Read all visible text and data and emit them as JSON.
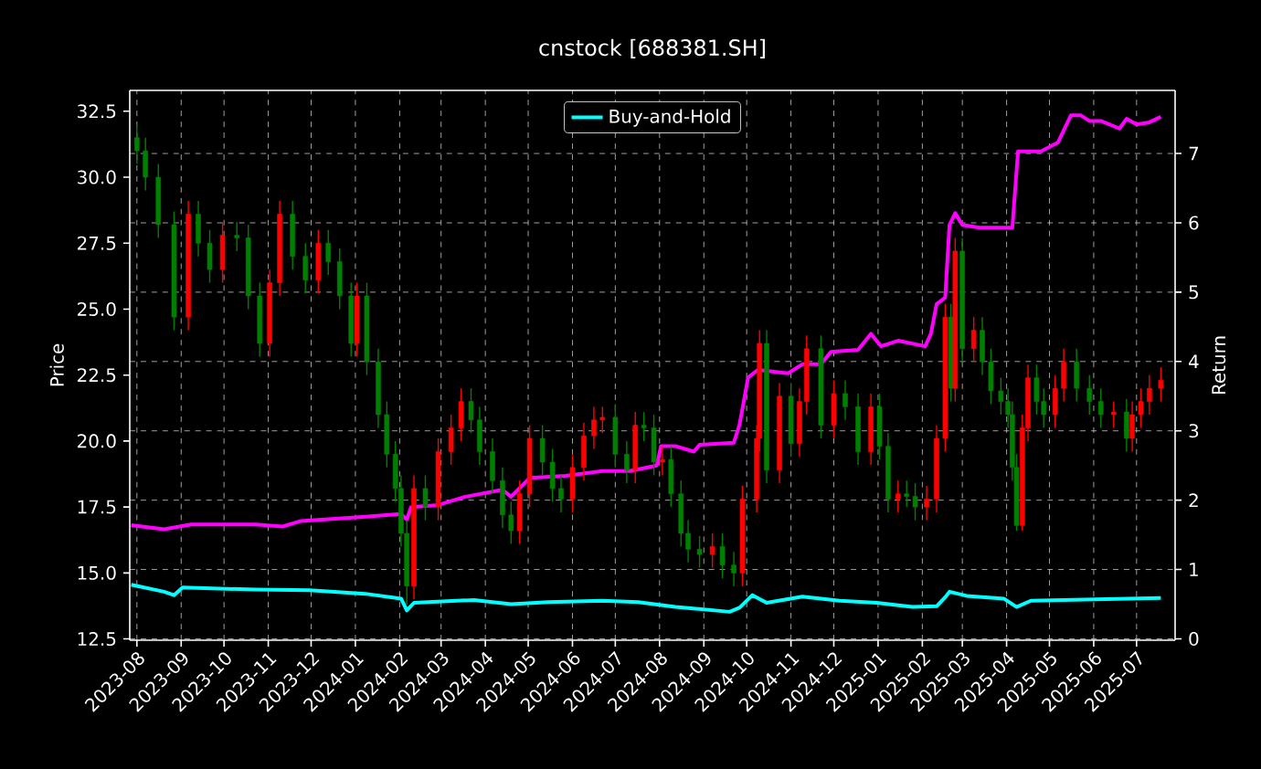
{
  "chart_data": {
    "type": "candlestick",
    "title": "cnstock [688381.SH]",
    "ylabel": "Price",
    "y2label": "Return",
    "xlim": [
      "2023-07-27",
      "2025-07-28"
    ],
    "xticks": [
      "2023-08",
      "2023-09",
      "2023-10",
      "2023-11",
      "2023-12",
      "2024-01",
      "2024-02",
      "2024-03",
      "2024-04",
      "2024-05",
      "2024-06",
      "2024-07",
      "2024-08",
      "2024-09",
      "2024-10",
      "2024-11",
      "2024-12",
      "2025-01",
      "2025-02",
      "2025-03",
      "2025-04",
      "2025-05",
      "2025-06",
      "2025-07"
    ],
    "ylim": [
      12.45,
      33.29
    ],
    "yticks": [
      12.5,
      {
        "value": 15,
        "label": "15.0"
      },
      17.5,
      {
        "value": 20,
        "label": "20.0"
      },
      22.5,
      {
        "value": 25,
        "label": "25.0"
      },
      27.5,
      {
        "value": 30,
        "label": "30.0"
      },
      32.5
    ],
    "y2lim": [
      -0.02,
      7.91
    ],
    "y2ticks": [
      0,
      1,
      2,
      3,
      4,
      5,
      6,
      7
    ],
    "grid": true,
    "legend": "top",
    "marker": "none",
    "line_style": "solid",
    "series": [
      {
        "type": "line",
        "axis": "y2",
        "color": "#ff00ff",
        "x": [
          "2023-07-28",
          "2023-08-20",
          "2023-09-08",
          "2023-10-23",
          "2023-11-11",
          "2023-11-24",
          "2024-01-08",
          "2024-02-02",
          "2024-02-06",
          "2024-02-09",
          "2024-02-28",
          "2024-03-18",
          "2024-04-13",
          "2024-04-19",
          "2024-05-02",
          "2024-05-27",
          "2024-06-22",
          "2024-07-11",
          "2024-07-30",
          "2024-08-02",
          "2024-08-12",
          "2024-08-25",
          "2024-08-29",
          "2024-09-22",
          "2024-09-26",
          "2024-10-02",
          "2024-10-09",
          "2024-10-30",
          "2024-11-09",
          "2024-11-22",
          "2024-11-29",
          "2024-12-18",
          "2024-12-27",
          "2025-01-03",
          "2025-01-15",
          "2025-02-03",
          "2025-02-07",
          "2025-02-11",
          "2025-02-17",
          "2025-02-20",
          "2025-02-24",
          "2025-03-01",
          "2025-03-13",
          "2025-04-05",
          "2025-04-09",
          "2025-04-25",
          "2025-05-07",
          "2025-05-16",
          "2025-05-23",
          "2025-05-29",
          "2025-06-06",
          "2025-06-19",
          "2025-06-24",
          "2025-07-01",
          "2025-07-10",
          "2025-07-18"
        ],
        "values": [
          1.64,
          1.58,
          1.65,
          1.65,
          1.62,
          1.7,
          1.76,
          1.8,
          1.72,
          1.9,
          1.93,
          2.05,
          2.15,
          2.05,
          2.32,
          2.35,
          2.42,
          2.42,
          2.5,
          2.78,
          2.78,
          2.7,
          2.8,
          2.83,
          3.09,
          3.77,
          3.88,
          3.83,
          3.96,
          3.96,
          4.14,
          4.17,
          4.4,
          4.22,
          4.3,
          4.22,
          4.4,
          4.83,
          4.92,
          5.97,
          6.14,
          5.97,
          5.93,
          5.93,
          7.03,
          7.03,
          7.16,
          7.55,
          7.55,
          7.47,
          7.47,
          7.36,
          7.5,
          7.42,
          7.45,
          7.53
        ]
      },
      {
        "type": "line",
        "axis": "y2",
        "name": "Buy-and-Hold",
        "color": "#00ffff",
        "x": [
          "2023-07-28",
          "2023-08-20",
          "2023-08-27",
          "2023-09-02",
          "2023-10-23",
          "2023-11-30",
          "2024-01-08",
          "2024-02-02",
          "2024-02-06",
          "2024-02-11",
          "2024-03-24",
          "2024-04-19",
          "2024-05-15",
          "2024-06-22",
          "2024-07-17",
          "2024-08-12",
          "2024-09-19",
          "2024-09-26",
          "2024-10-05",
          "2024-10-15",
          "2024-11-09",
          "2024-12-05",
          "2024-12-31",
          "2025-01-25",
          "2025-02-11",
          "2025-02-17",
          "2025-02-20",
          "2025-03-04",
          "2025-03-30",
          "2025-04-08",
          "2025-04-18",
          "2025-06-02",
          "2025-07-18"
        ],
        "values": [
          0.78,
          0.68,
          0.63,
          0.74,
          0.71,
          0.7,
          0.65,
          0.58,
          0.41,
          0.52,
          0.56,
          0.5,
          0.53,
          0.55,
          0.53,
          0.46,
          0.39,
          0.45,
          0.63,
          0.52,
          0.61,
          0.55,
          0.52,
          0.46,
          0.47,
          0.6,
          0.68,
          0.62,
          0.58,
          0.46,
          0.55,
          0.57,
          0.59
        ]
      },
      {
        "x": [
          "2023-08-01",
          "2023-08-07",
          "2023-08-16",
          "2023-08-27",
          "2023-09-06",
          "2023-09-13",
          "2023-09-21",
          "2023-09-30",
          "2023-10-10",
          "2023-10-18",
          "2023-10-26",
          "2023-11-02",
          "2023-11-09",
          "2023-11-18",
          "2023-11-27",
          "2023-12-06",
          "2023-12-13",
          "2023-12-21",
          "2023-12-29",
          "2024-01-02",
          "2024-01-09",
          "2024-01-17",
          "2024-01-23",
          "2024-01-29",
          "2024-02-02",
          "2024-02-06",
          "2024-02-11",
          "2024-02-19",
          "2024-02-28",
          "2024-03-08",
          "2024-03-15",
          "2024-03-22",
          "2024-03-28",
          "2024-04-06",
          "2024-04-13",
          "2024-04-19",
          "2024-04-25",
          "2024-05-02",
          "2024-05-11",
          "2024-05-18",
          "2024-05-24",
          "2024-06-01",
          "2024-06-09",
          "2024-06-16",
          "2024-06-22",
          "2024-07-01",
          "2024-07-09",
          "2024-07-15",
          "2024-07-21",
          "2024-07-28",
          "2024-08-03",
          "2024-08-09",
          "2024-08-16",
          "2024-08-21",
          "2024-08-29",
          "2024-09-07",
          "2024-09-14",
          "2024-09-22",
          "2024-09-28",
          "2024-10-08",
          "2024-10-10",
          "2024-10-15",
          "2024-10-24",
          "2024-11-01",
          "2024-11-07",
          "2024-11-12",
          "2024-11-22",
          "2024-12-01",
          "2024-12-09",
          "2024-12-18",
          "2024-12-27",
          "2025-01-02",
          "2025-01-08",
          "2025-01-15",
          "2025-01-21",
          "2025-01-27",
          "2025-02-04",
          "2025-02-11",
          "2025-02-17",
          "2025-02-21",
          "2025-02-24",
          "2025-03-01",
          "2025-03-09",
          "2025-03-15",
          "2025-03-21",
          "2025-03-28",
          "2025-04-02",
          "2025-04-05",
          "2025-04-08",
          "2025-04-12",
          "2025-04-16",
          "2025-04-22",
          "2025-04-27",
          "2025-05-05",
          "2025-05-11",
          "2025-05-20",
          "2025-05-29",
          "2025-06-06",
          "2025-06-15",
          "2025-06-24",
          "2025-06-28",
          "2025-07-04",
          "2025-07-10",
          "2025-07-18"
        ],
        "ohlc": [
          [
            31.5,
            32.0,
            30.5,
            31.0
          ],
          [
            31.0,
            31.5,
            29.5,
            30.0
          ],
          [
            30.0,
            30.5,
            27.7,
            28.2
          ],
          [
            28.2,
            28.7,
            24.2,
            24.7
          ],
          [
            24.7,
            29.1,
            24.2,
            28.6
          ],
          [
            28.6,
            29.1,
            27.0,
            27.5
          ],
          [
            27.5,
            28.0,
            26.0,
            26.5
          ],
          [
            26.5,
            28.3,
            26.0,
            27.8
          ],
          [
            27.8,
            28.3,
            27.2,
            27.7
          ],
          [
            27.7,
            28.2,
            25.0,
            25.5
          ],
          [
            25.5,
            26.0,
            23.2,
            23.7
          ],
          [
            23.7,
            26.5,
            23.2,
            26.0
          ],
          [
            26.0,
            29.1,
            25.5,
            28.6
          ],
          [
            28.6,
            29.1,
            26.5,
            27.0
          ],
          [
            27.0,
            27.5,
            25.6,
            26.1
          ],
          [
            26.1,
            28.0,
            25.6,
            27.5
          ],
          [
            27.5,
            28.0,
            26.3,
            26.8
          ],
          [
            26.8,
            27.3,
            25.0,
            25.5
          ],
          [
            25.5,
            26.0,
            23.2,
            23.7
          ],
          [
            23.7,
            26.0,
            23.2,
            25.5
          ],
          [
            25.5,
            26.0,
            22.5,
            23.0
          ],
          [
            23.0,
            23.5,
            20.5,
            21.0
          ],
          [
            21.0,
            21.5,
            19.0,
            19.5
          ],
          [
            19.5,
            20.0,
            17.7,
            18.2
          ],
          [
            18.2,
            18.7,
            16.0,
            16.5
          ],
          [
            16.5,
            17.0,
            13.8,
            14.5
          ],
          [
            14.5,
            18.7,
            14.0,
            18.2
          ],
          [
            18.2,
            18.7,
            17.0,
            17.5
          ],
          [
            17.5,
            20.1,
            17.0,
            19.6
          ],
          [
            19.6,
            21.0,
            19.1,
            20.5
          ],
          [
            20.5,
            22.0,
            20.0,
            21.5
          ],
          [
            21.5,
            22.0,
            20.3,
            20.8
          ],
          [
            20.8,
            21.3,
            19.1,
            19.6
          ],
          [
            19.6,
            20.1,
            18.0,
            18.5
          ],
          [
            18.5,
            19.0,
            16.7,
            17.2
          ],
          [
            17.2,
            17.7,
            16.1,
            16.6
          ],
          [
            16.6,
            18.5,
            16.1,
            18.0
          ],
          [
            18.0,
            20.6,
            17.5,
            20.1
          ],
          [
            20.1,
            20.6,
            18.7,
            19.2
          ],
          [
            19.2,
            19.7,
            17.7,
            18.2
          ],
          [
            18.2,
            18.7,
            17.3,
            17.8
          ],
          [
            17.8,
            19.5,
            17.3,
            19.0
          ],
          [
            19.0,
            20.7,
            18.5,
            20.2
          ],
          [
            20.2,
            21.3,
            19.7,
            20.8
          ],
          [
            20.8,
            21.3,
            20.3,
            20.9
          ],
          [
            20.9,
            21.4,
            19.0,
            19.5
          ],
          [
            19.5,
            20.0,
            18.4,
            18.9
          ],
          [
            18.9,
            21.1,
            18.4,
            20.6
          ],
          [
            20.6,
            21.1,
            20.0,
            20.5
          ],
          [
            20.5,
            21.0,
            18.7,
            19.2
          ],
          [
            19.2,
            19.8,
            18.7,
            19.3
          ],
          [
            19.3,
            19.8,
            17.5,
            18.0
          ],
          [
            18.0,
            18.5,
            16.0,
            16.5
          ],
          [
            16.5,
            17.0,
            15.4,
            15.9
          ],
          [
            15.9,
            16.4,
            15.2,
            15.7
          ],
          [
            15.7,
            16.5,
            15.2,
            16.0
          ],
          [
            16.0,
            16.5,
            14.8,
            15.3
          ],
          [
            15.3,
            15.8,
            14.5,
            15.0
          ],
          [
            15.0,
            18.3,
            14.5,
            17.8
          ],
          [
            17.8,
            20.6,
            17.3,
            20.1
          ],
          [
            20.1,
            24.2,
            19.6,
            23.7
          ],
          [
            23.7,
            24.2,
            18.4,
            18.9
          ],
          [
            18.9,
            22.2,
            18.4,
            21.7
          ],
          [
            21.7,
            22.2,
            19.4,
            19.9
          ],
          [
            19.9,
            22.0,
            19.4,
            21.5
          ],
          [
            21.5,
            24.0,
            21.0,
            23.5
          ],
          [
            23.5,
            24.0,
            20.1,
            20.6
          ],
          [
            20.6,
            22.3,
            20.1,
            21.8
          ],
          [
            21.8,
            22.3,
            20.8,
            21.3
          ],
          [
            21.3,
            21.8,
            19.1,
            19.6
          ],
          [
            19.6,
            21.8,
            19.1,
            21.3
          ],
          [
            21.3,
            21.8,
            19.3,
            19.8
          ],
          [
            19.8,
            20.3,
            17.3,
            17.8
          ],
          [
            17.8,
            18.5,
            17.3,
            18.0
          ],
          [
            18.0,
            18.5,
            17.5,
            17.9
          ],
          [
            17.9,
            18.4,
            17.0,
            17.5
          ],
          [
            17.5,
            18.3,
            17.0,
            17.8
          ],
          [
            17.8,
            20.6,
            17.3,
            20.1
          ],
          [
            20.1,
            25.2,
            19.6,
            24.7
          ],
          [
            24.7,
            25.2,
            21.5,
            22.0
          ],
          [
            22.0,
            27.7,
            21.5,
            27.2
          ],
          [
            27.2,
            27.7,
            23.0,
            23.5
          ],
          [
            23.5,
            24.7,
            23.0,
            24.2
          ],
          [
            24.2,
            24.7,
            22.5,
            23.0
          ],
          [
            23.0,
            23.5,
            21.4,
            21.9
          ],
          [
            21.9,
            22.4,
            21.0,
            21.5
          ],
          [
            21.5,
            22.0,
            20.5,
            21.0
          ],
          [
            21.0,
            21.5,
            18.5,
            19.0
          ],
          [
            19.0,
            19.5,
            16.6,
            16.8
          ],
          [
            16.8,
            21.0,
            16.6,
            20.5
          ],
          [
            20.5,
            22.9,
            20.0,
            22.4
          ],
          [
            22.4,
            22.9,
            21.0,
            21.5
          ],
          [
            21.5,
            22.0,
            20.5,
            21.0
          ],
          [
            21.0,
            22.5,
            20.5,
            22.0
          ],
          [
            22.0,
            23.5,
            21.5,
            23.0
          ],
          [
            23.0,
            23.5,
            21.5,
            22.0
          ],
          [
            22.0,
            22.5,
            21.0,
            21.5
          ],
          [
            21.5,
            22.0,
            20.5,
            21.0
          ],
          [
            21.0,
            21.5,
            20.5,
            21.1
          ],
          [
            21.1,
            21.6,
            19.6,
            20.1
          ],
          [
            20.1,
            21.5,
            19.6,
            21.0
          ],
          [
            21.0,
            22.0,
            20.5,
            21.5
          ],
          [
            21.5,
            22.5,
            21.0,
            22.0
          ],
          [
            22.0,
            22.8,
            21.5,
            22.3
          ]
        ],
        "colors": [
          "#008000",
          "#008000",
          "#008000",
          "#008000",
          "#ff0000",
          "#008000",
          "#008000",
          "#ff0000",
          "#008000",
          "#008000",
          "#008000",
          "#ff0000",
          "#ff0000",
          "#008000",
          "#008000",
          "#ff0000",
          "#008000",
          "#008000",
          "#008000",
          "#ff0000",
          "#008000",
          "#008000",
          "#008000",
          "#008000",
          "#008000",
          "#008000",
          "#ff0000",
          "#008000",
          "#ff0000",
          "#ff0000",
          "#ff0000",
          "#008000",
          "#008000",
          "#008000",
          "#008000",
          "#008000",
          "#ff0000",
          "#ff0000",
          "#008000",
          "#008000",
          "#008000",
          "#ff0000",
          "#ff0000",
          "#ff0000",
          "#ff0000",
          "#008000",
          "#008000",
          "#ff0000",
          "#008000",
          "#008000",
          "#ff0000",
          "#008000",
          "#008000",
          "#008000",
          "#008000",
          "#ff0000",
          "#008000",
          "#008000",
          "#ff0000",
          "#ff0000",
          "#ff0000",
          "#008000",
          "#ff0000",
          "#008000",
          "#ff0000",
          "#ff0000",
          "#008000",
          "#ff0000",
          "#008000",
          "#008000",
          "#ff0000",
          "#008000",
          "#008000",
          "#ff0000",
          "#008000",
          "#008000",
          "#ff0000",
          "#ff0000",
          "#ff0000",
          "#008000",
          "#ff0000",
          "#008000",
          "#ff0000",
          "#008000",
          "#008000",
          "#008000",
          "#008000",
          "#008000",
          "#008000",
          "#ff0000",
          "#ff0000",
          "#008000",
          "#008000",
          "#ff0000",
          "#ff0000",
          "#008000",
          "#008000",
          "#008000",
          "#ff0000",
          "#008000",
          "#ff0000",
          "#ff0000",
          "#ff0000",
          "#ff0000"
        ]
      }
    ]
  }
}
